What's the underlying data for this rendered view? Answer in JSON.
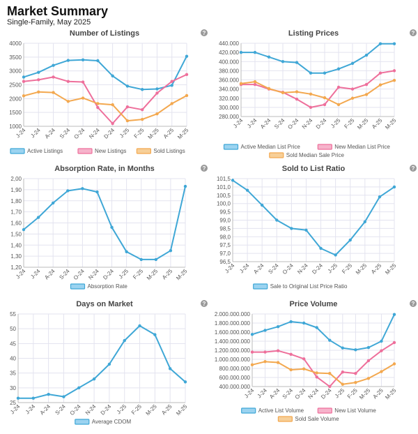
{
  "header": {
    "title": "Market Summary",
    "subtitle": "Single-Family, May 2025"
  },
  "help_label": "?",
  "colors": {
    "blue": "#3fa7d6",
    "blue_fill": "#9bd3f0",
    "pink": "#ee6f9b",
    "pink_fill": "#f6b3cb",
    "orange": "#f3a84f",
    "orange_fill": "#f7cf98"
  },
  "chart_data": [
    {
      "type": "line",
      "title": "Number of Listings",
      "categories": [
        "J-24",
        "J-24",
        "A-24",
        "S-24",
        "O-24",
        "N-24",
        "D-24",
        "J-25",
        "F-25",
        "M-25",
        "A-25",
        "M-25"
      ],
      "x_tick_labels": [
        "J-24",
        "J-24",
        "A-24",
        "S-24",
        "O-24",
        "N-24",
        "D-24",
        "J-25",
        "F-25",
        "M-25",
        "A-25",
        "M-25"
      ],
      "ylim": [
        1000,
        4000
      ],
      "y_ticks": [
        1000,
        1500,
        2000,
        2500,
        3000,
        3500,
        4000
      ],
      "y_tick_labels": [
        "1000",
        "1500",
        "2000",
        "2500",
        "3000",
        "3500",
        "4000"
      ],
      "series": [
        {
          "name": "Active Listings",
          "color": "blue",
          "values": [
            2780,
            2950,
            3200,
            3380,
            3400,
            3370,
            2820,
            2450,
            2330,
            2350,
            2480,
            3530
          ]
        },
        {
          "name": "New Listings",
          "color": "pink",
          "values": [
            2620,
            2680,
            2780,
            2620,
            2600,
            1680,
            1100,
            1700,
            1600,
            2200,
            2620,
            2870
          ]
        },
        {
          "name": "Sold Listings",
          "color": "orange",
          "values": [
            2100,
            2240,
            2220,
            1900,
            2020,
            1820,
            1780,
            1200,
            1250,
            1450,
            1820,
            2110
          ]
        }
      ]
    },
    {
      "type": "line",
      "title": "Listing Prices",
      "categories": [
        "J-24",
        "J-24",
        "A-24",
        "S-24",
        "O-24",
        "N-24",
        "D-24",
        "J-25",
        "F-25",
        "M-25",
        "A-25",
        "M-25"
      ],
      "x_tick_labels": [
        "J-24",
        "J-24",
        "A-24",
        "S-24",
        "O-24",
        "N-24",
        "D-24",
        "J-25",
        "F-25",
        "M-25",
        "A-25",
        "M-25"
      ],
      "ylim": [
        280000,
        440000
      ],
      "y_ticks": [
        280000,
        300000,
        320000,
        340000,
        360000,
        380000,
        400000,
        420000,
        440000
      ],
      "y_tick_labels": [
        "280.000",
        "300.000",
        "320.000",
        "340.000",
        "360.000",
        "380.000",
        "400.000",
        "420.000",
        "440.000"
      ],
      "series": [
        {
          "name": "Active Median List Price",
          "color": "blue",
          "values": [
            420000,
            420000,
            410000,
            400000,
            398000,
            375000,
            375000,
            384000,
            396000,
            414000,
            439000,
            439000
          ]
        },
        {
          "name": "New Median List Price",
          "color": "pink",
          "values": [
            350000,
            350000,
            340000,
            333000,
            318000,
            300000,
            306000,
            344000,
            340000,
            350000,
            375000,
            380000
          ]
        },
        {
          "name": "Sold Median Sale Price",
          "color": "orange",
          "values": [
            352000,
            356000,
            341000,
            332000,
            334000,
            329000,
            321000,
            306000,
            320000,
            328000,
            349000,
            359000
          ]
        }
      ]
    },
    {
      "type": "line",
      "title": "Absorption Rate, in Months",
      "categories": [
        "J-24",
        "J-24",
        "A-24",
        "S-24",
        "O-24",
        "N-24",
        "D-24",
        "J-25",
        "F-25",
        "M-25",
        "A-25",
        "M-25"
      ],
      "x_tick_labels": [
        "J-24",
        "J-24",
        "A-24",
        "S-24",
        "O-24",
        "N-24",
        "D-24",
        "J-25",
        "F-25",
        "M-25",
        "A-25",
        "M-25"
      ],
      "ylim": [
        1.2,
        2.0
      ],
      "y_ticks": [
        1.2,
        1.3,
        1.4,
        1.5,
        1.6,
        1.7,
        1.8,
        1.9,
        2.0
      ],
      "y_tick_labels": [
        "1,20",
        "1,30",
        "1,40",
        "1,50",
        "1,60",
        "1,70",
        "1,80",
        "1,90",
        "2,00"
      ],
      "series": [
        {
          "name": "Absorption Rate",
          "color": "blue",
          "values": [
            1.54,
            1.65,
            1.78,
            1.89,
            1.91,
            1.88,
            1.56,
            1.34,
            1.27,
            1.27,
            1.35,
            1.93
          ]
        }
      ]
    },
    {
      "type": "line",
      "title": "Sold to List Ratio",
      "categories": [
        "J-24",
        "J-24",
        "A-24",
        "S-24",
        "O-24",
        "N-24",
        "D-24",
        "J-25",
        "F-25",
        "M-25",
        "A-25",
        "M-25"
      ],
      "x_tick_labels": [
        "J-24",
        "J-24",
        "A-24",
        "S-24",
        "O-24",
        "N-24",
        "D-24",
        "J-25",
        "F-25",
        "M-25",
        "A-25",
        "M-25"
      ],
      "ylim": [
        96.5,
        101.5
      ],
      "y_ticks": [
        96.5,
        97.0,
        97.5,
        98.0,
        98.5,
        99.0,
        99.5,
        100.0,
        100.5,
        101.0,
        101.5
      ],
      "y_tick_labels": [
        "96,5",
        "97,0",
        "97,5",
        "98,0",
        "98,5",
        "99,0",
        "99,5",
        "100,0",
        "100,5",
        "101,0",
        "101,5"
      ],
      "series": [
        {
          "name": "Sale to Original List Price Ratio",
          "color": "blue",
          "values": [
            101.4,
            100.8,
            99.9,
            99.0,
            98.5,
            98.4,
            97.3,
            96.9,
            97.8,
            98.9,
            100.4,
            101.0
          ]
        }
      ]
    },
    {
      "type": "line",
      "title": "Days on Market",
      "categories": [
        "J-24",
        "J-24",
        "A-24",
        "S-24",
        "O-24",
        "N-24",
        "D-24",
        "J-25",
        "F-25",
        "M-25",
        "A-25",
        "M-25"
      ],
      "x_tick_labels": [
        "J-24",
        "J-24",
        "A-24",
        "S-24",
        "O-24",
        "N-24",
        "D-24",
        "J-25",
        "F-25",
        "M-25",
        "A-25",
        "M-25"
      ],
      "ylim": [
        25,
        55
      ],
      "y_ticks": [
        25,
        30,
        35,
        40,
        45,
        50,
        55
      ],
      "y_tick_labels": [
        "25",
        "30",
        "35",
        "40",
        "45",
        "50",
        "55"
      ],
      "series": [
        {
          "name": "Average CDOM",
          "color": "blue",
          "values": [
            26.5,
            26.5,
            27.8,
            27.0,
            30.0,
            33.0,
            38.0,
            46.0,
            51.0,
            48.0,
            36.5,
            32.0
          ]
        }
      ]
    },
    {
      "type": "line",
      "title": "Price Volume",
      "categories": [
        "J-24",
        "J-24",
        "A-24",
        "S-24",
        "O-24",
        "N-24",
        "D-24",
        "J-25",
        "F-25",
        "M-25",
        "A-25",
        "M-25"
      ],
      "x_tick_labels": [
        "J-24",
        "J-24",
        "A-24",
        "S-24",
        "O-24",
        "N-24",
        "D-24",
        "J-25",
        "F-25",
        "M-25",
        "A-25",
        "M-25"
      ],
      "ylim": [
        400000000,
        2000000000
      ],
      "y_ticks": [
        400000000,
        600000000,
        800000000,
        1000000000,
        1200000000,
        1400000000,
        1600000000,
        1800000000,
        2000000000
      ],
      "y_tick_labels": [
        "400.000.000",
        "600.000.000",
        "800.000.000",
        "1.000.000.000",
        "1.200.000.000",
        "1.400.000.000",
        "1.600.000.000",
        "1.800.000.000",
        "2.000.000.000"
      ],
      "series": [
        {
          "name": "Active List Volume",
          "color": "blue",
          "values": [
            1550000000,
            1640000000,
            1720000000,
            1830000000,
            1800000000,
            1700000000,
            1420000000,
            1250000000,
            1210000000,
            1260000000,
            1400000000,
            1990000000
          ]
        },
        {
          "name": "New List Volume",
          "color": "pink",
          "values": [
            1160000000,
            1160000000,
            1190000000,
            1110000000,
            1010000000,
            610000000,
            400000000,
            720000000,
            690000000,
            970000000,
            1190000000,
            1370000000
          ]
        },
        {
          "name": "Sold Sale Volume",
          "color": "orange",
          "values": [
            880000000,
            950000000,
            930000000,
            770000000,
            790000000,
            700000000,
            690000000,
            450000000,
            490000000,
            580000000,
            730000000,
            900000000
          ]
        }
      ]
    }
  ]
}
